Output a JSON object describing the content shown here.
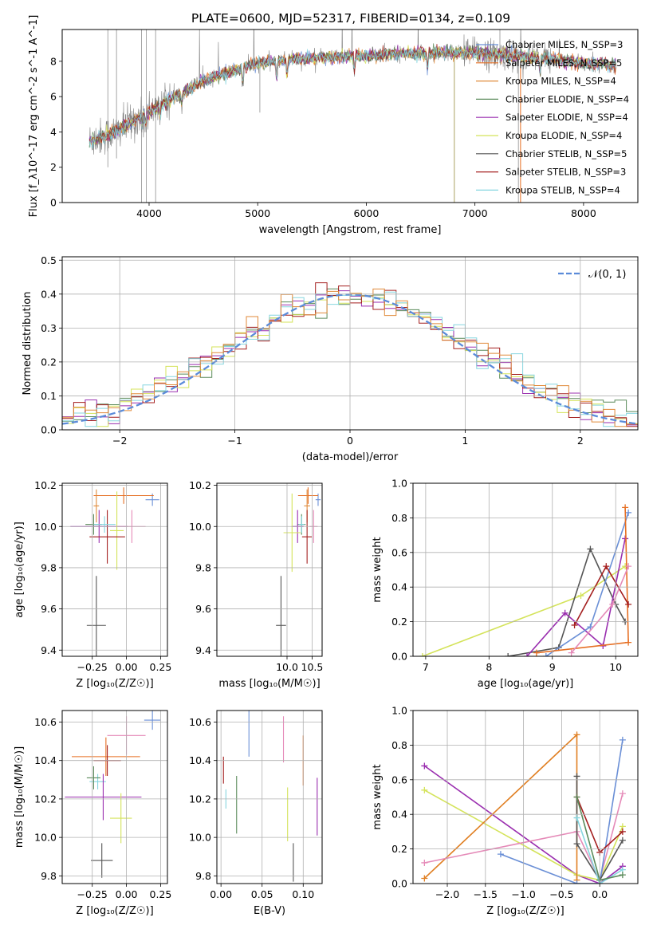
{
  "colors": {
    "ChMI": "#6a8fd6",
    "SaMI": "#e66f23",
    "KrMI": "#e08a3a",
    "ChEL": "#5a8a5a",
    "SaEL": "#9a2eaf",
    "KrEL": "#d4e35a",
    "ChST": "#555555",
    "SaST": "#a41f1f",
    "KrST": "#86d6df",
    "pink": "#e58ab8",
    "orange": "#e07f22",
    "norm": "#5b8bd9"
  },
  "chart_data": [
    {
      "type": "line",
      "title": "PLATE=0600, MJD=52317, FIBERID=0134, z=0.109",
      "xlabel": "wavelength [Angstrom, rest frame]",
      "ylabel": "Flux [f_λ10^-17 erg cm^-2 s^-1 A^-1]",
      "xlim": [
        3200,
        8500
      ],
      "ylim": [
        0,
        9.8
      ],
      "xticks": [
        "4000",
        "5000",
        "6000",
        "7000",
        "8000"
      ],
      "yticks": [
        "0",
        "2",
        "4",
        "6",
        "8"
      ],
      "legend_position": "right",
      "legend": [
        {
          "name": "Chabrier MILES, N_SSP=3",
          "color": "ChMI"
        },
        {
          "name": "Salpeter MILES, N_SSP=5",
          "color": "SaMI"
        },
        {
          "name": "Kroupa MILES, N_SSP=4",
          "color": "KrMI"
        },
        {
          "name": "Chabrier ELODIE, N_SSP=4",
          "color": "ChEL"
        },
        {
          "name": "Salpeter ELODIE, N_SSP=4",
          "color": "SaEL"
        },
        {
          "name": "Kroupa ELODIE, N_SSP=4",
          "color": "KrEL"
        },
        {
          "name": "Chabrier STELIB, N_SSP=5",
          "color": "ChST"
        },
        {
          "name": "Salpeter STELIB, N_SSP=3",
          "color": "SaST"
        },
        {
          "name": "Kroupa STELIB, N_SSP=4",
          "color": "KrST"
        }
      ],
      "continuum": [
        [
          3450,
          3.5
        ],
        [
          3700,
          4.0
        ],
        [
          3900,
          4.8
        ],
        [
          4100,
          5.5
        ],
        [
          4300,
          6.2
        ],
        [
          4500,
          6.9
        ],
        [
          4800,
          7.5
        ],
        [
          5000,
          7.9
        ],
        [
          5300,
          8.1
        ],
        [
          5600,
          8.2
        ],
        [
          6000,
          8.3
        ],
        [
          6400,
          8.45
        ],
        [
          6800,
          8.5
        ],
        [
          7200,
          8.4
        ],
        [
          7600,
          8.2
        ],
        [
          8000,
          7.9
        ],
        [
          8300,
          7.8
        ]
      ]
    },
    {
      "type": "histogram",
      "xlabel": "(data-model)/error",
      "ylabel": "Normed distribution",
      "xlim": [
        -2.5,
        2.5
      ],
      "ylim": [
        0,
        0.51
      ],
      "xticks": [
        "−2",
        "−1",
        "0",
        "1",
        "2"
      ],
      "yticks": [
        "0.0",
        "0.1",
        "0.2",
        "0.3",
        "0.4",
        "0.5"
      ],
      "legend": [
        {
          "name": "𝒩(0, 1)",
          "color": "norm"
        }
      ],
      "bin_edges_range": [
        -2.5,
        2.5
      ],
      "series_colors": [
        "ChEL",
        "SaEL",
        "KrEL",
        "SaST",
        "KrST",
        "KrMI"
      ]
    },
    {
      "type": "errorbar",
      "xlabel": "Z [log₁₀(Z/Z☉)]",
      "ylabel": "age  [log₁₀(age/yr)]",
      "xlim": [
        -0.47,
        0.3
      ],
      "ylim": [
        9.37,
        10.21
      ],
      "xticks": [
        "−0.25",
        "0.00",
        "0.25"
      ],
      "yticks": [
        "9.4",
        "9.6",
        "9.8",
        "10.0",
        "10.2"
      ],
      "points": [
        {
          "c": "ChMI",
          "x": 0.19,
          "dx": 0.05,
          "y": 10.13,
          "dy": 0.03
        },
        {
          "c": "SaMI",
          "x": -0.02,
          "dx": 0.22,
          "y": 10.15,
          "dy": 0.04
        },
        {
          "c": "KrMI",
          "x": -0.22,
          "dx": 0.02,
          "y": 10.1,
          "dy": 0.08
        },
        {
          "c": "ChEL",
          "x": -0.24,
          "dx": 0.06,
          "y": 10.01,
          "dy": 0.05
        },
        {
          "c": "SaEL",
          "x": -0.2,
          "dx": 0.21,
          "y": 10.0,
          "dy": 0.08
        },
        {
          "c": "KrEL",
          "x": -0.07,
          "dx": 0.05,
          "y": 9.98,
          "dy": 0.19
        },
        {
          "c": "ChST",
          "x": -0.22,
          "dx": 0.07,
          "y": 9.52,
          "dy": 0.24
        },
        {
          "c": "SaST",
          "x": -0.14,
          "dx": 0.13,
          "y": 9.95,
          "dy": 0.13
        },
        {
          "c": "KrST",
          "x": -0.16,
          "dx": 0.08,
          "y": 10.01,
          "dy": 0.04
        },
        {
          "c": "pink",
          "x": 0.04,
          "dx": 0.1,
          "y": 10.0,
          "dy": 0.08
        }
      ]
    },
    {
      "type": "errorbar",
      "xlabel": "mass [log₁₀(M/M☉)]",
      "ylabel": "",
      "xlim": [
        8.6,
        10.7
      ],
      "ylim": [
        9.37,
        10.21
      ],
      "xticks": [
        "10.0",
        "10.5"
      ],
      "yticks": [
        "9.4",
        "9.6",
        "9.8",
        "10.0",
        "10.2"
      ],
      "points": [
        {
          "c": "ChMI",
          "x": 10.62,
          "dx": 0.05,
          "y": 10.13,
          "dy": 0.03
        },
        {
          "c": "SaMI",
          "x": 10.42,
          "dx": 0.2,
          "y": 10.15,
          "dy": 0.04
        },
        {
          "c": "KrMI",
          "x": 10.4,
          "dx": 0.06,
          "y": 10.1,
          "dy": 0.08
        },
        {
          "c": "ChEL",
          "x": 10.29,
          "dx": 0.08,
          "y": 10.01,
          "dy": 0.05
        },
        {
          "c": "SaEL",
          "x": 10.21,
          "dx": 0.12,
          "y": 10.0,
          "dy": 0.08
        },
        {
          "c": "KrEL",
          "x": 10.1,
          "dx": 0.17,
          "y": 9.97,
          "dy": 0.19
        },
        {
          "c": "ChST",
          "x": 9.88,
          "dx": 0.1,
          "y": 9.52,
          "dy": 0.24
        },
        {
          "c": "SaST",
          "x": 10.4,
          "dx": 0.1,
          "y": 9.95,
          "dy": 0.13
        },
        {
          "c": "KrST",
          "x": 10.29,
          "dx": 0.06,
          "y": 10.01,
          "dy": 0.04
        },
        {
          "c": "pink",
          "x": 10.53,
          "dx": 0.08,
          "y": 10.0,
          "dy": 0.08
        }
      ]
    },
    {
      "type": "line",
      "xlabel": "age  [log₁₀(age/yr)]",
      "ylabel": "mass weight",
      "xlim": [
        6.8,
        10.35
      ],
      "ylim": [
        0,
        1.0
      ],
      "xticks": [
        "7",
        "8",
        "9",
        "10"
      ],
      "yticks": [
        "0.0",
        "0.2",
        "0.4",
        "0.6",
        "0.8",
        "1.0"
      ],
      "series": [
        {
          "c": "KrEL",
          "x": [
            6.95,
            9.45,
            10.15
          ],
          "y": [
            0.0,
            0.35,
            0.52
          ]
        },
        {
          "c": "ChST",
          "x": [
            8.3,
            9.1,
            9.6,
            10.0,
            10.15
          ],
          "y": [
            0.0,
            0.05,
            0.62,
            0.3,
            0.2
          ]
        },
        {
          "c": "SaEL",
          "x": [
            8.6,
            9.2,
            9.8,
            10.15
          ],
          "y": [
            0.0,
            0.25,
            0.06,
            0.68
          ]
        },
        {
          "c": "ChMI",
          "x": [
            8.9,
            9.6,
            10.2
          ],
          "y": [
            0.0,
            0.17,
            0.83
          ]
        },
        {
          "c": "SaMI",
          "x": [
            8.75,
            10.2,
            10.15
          ],
          "y": [
            0.02,
            0.08,
            0.86
          ]
        },
        {
          "c": "SaST",
          "x": [
            9.35,
            9.85,
            10.2
          ],
          "y": [
            0.18,
            0.52,
            0.3
          ]
        },
        {
          "c": "pink",
          "x": [
            9.3,
            9.95,
            10.2
          ],
          "y": [
            0.02,
            0.3,
            0.52
          ]
        }
      ]
    },
    {
      "type": "errorbar",
      "xlabel": "Z [log₁₀(Z/Z☉)]",
      "ylabel": "mass [log₁₀(M/M☉)]",
      "xlim": [
        -0.47,
        0.3
      ],
      "ylim": [
        9.76,
        10.66
      ],
      "xticks": [
        "−0.25",
        "0.00",
        "0.25"
      ],
      "yticks": [
        "9.8",
        "10.0",
        "10.2",
        "10.4",
        "10.6"
      ],
      "points": [
        {
          "c": "ChMI",
          "x": 0.19,
          "dx": 0.06,
          "y": 10.61,
          "dy": 0.05
        },
        {
          "c": "pink",
          "x": 0.0,
          "dx": 0.14,
          "y": 10.53,
          "dy": 0.1
        },
        {
          "c": "SaMI",
          "x": -0.15,
          "dx": 0.25,
          "y": 10.42,
          "dy": 0.1
        },
        {
          "c": "SaST",
          "x": -0.14,
          "dx": 0.1,
          "y": 10.4,
          "dy": 0.08
        },
        {
          "c": "KrST",
          "x": -0.21,
          "dx": 0.06,
          "y": 10.29,
          "dy": 0.04
        },
        {
          "c": "ChEL",
          "x": -0.24,
          "dx": 0.05,
          "y": 10.31,
          "dy": 0.06
        },
        {
          "c": "SaEL",
          "x": -0.17,
          "dx": 0.28,
          "y": 10.21,
          "dy": 0.12
        },
        {
          "c": "KrEL",
          "x": -0.04,
          "dx": 0.08,
          "y": 10.1,
          "dy": 0.13
        },
        {
          "c": "ChST",
          "x": -0.18,
          "dx": 0.08,
          "y": 9.88,
          "dy": 0.09
        }
      ]
    },
    {
      "type": "errorbar",
      "xlabel": "E(B-V)",
      "ylabel": "",
      "xlim": [
        -0.005,
        0.123
      ],
      "ylim": [
        9.76,
        10.66
      ],
      "xticks": [
        "0.00",
        "0.05",
        "0.10"
      ],
      "yticks": [
        "9.8",
        "10.0",
        "10.2",
        "10.4",
        "10.6"
      ],
      "points": [
        {
          "c": "SaST",
          "x": 0.003,
          "y": 10.35,
          "dy": 0.07
        },
        {
          "c": "KrST",
          "x": 0.006,
          "y": 10.2,
          "dy": 0.05
        },
        {
          "c": "ChEL",
          "x": 0.019,
          "y": 10.17,
          "dy": 0.15
        },
        {
          "c": "ChMI",
          "x": 0.034,
          "y": 10.54,
          "dy": 0.12
        },
        {
          "c": "pink",
          "x": 0.076,
          "y": 10.51,
          "dy": 0.12
        },
        {
          "c": "KrEL",
          "x": 0.081,
          "y": 10.12,
          "dy": 0.14
        },
        {
          "c": "ChST",
          "x": 0.088,
          "y": 9.87,
          "dy": 0.1
        },
        {
          "c": "SaMI",
          "x": 0.1,
          "y": 10.4,
          "dy": 0.13
        },
        {
          "c": "SaEL",
          "x": 0.117,
          "y": 10.16,
          "dy": 0.15
        }
      ]
    },
    {
      "type": "line",
      "xlabel": "Z [log₁₀(Z/Z☉)]",
      "ylabel": "mass weight",
      "xlim": [
        -2.45,
        0.5
      ],
      "ylim": [
        0,
        1.0
      ],
      "xticks": [
        "−2.0",
        "−1.5",
        "−1.0",
        "−0.5",
        "0.0"
      ],
      "yticks": [
        "0.0",
        "0.2",
        "0.4",
        "0.6",
        "0.8",
        "1.0"
      ],
      "series": [
        {
          "c": "SaEL",
          "x": [
            -2.3,
            -0.3,
            0.0,
            0.3
          ],
          "y": [
            0.68,
            0.05,
            0.0,
            0.1
          ]
        },
        {
          "c": "KrEL",
          "x": [
            -2.3,
            -0.3,
            0.0,
            0.3
          ],
          "y": [
            0.54,
            0.05,
            0.02,
            0.33
          ]
        },
        {
          "c": "orange",
          "x": [
            -2.3,
            -0.3,
            -0.3
          ],
          "y": [
            0.03,
            0.86,
            0.02
          ]
        },
        {
          "c": "pink",
          "x": [
            -2.3,
            -0.3,
            0.0,
            0.3
          ],
          "y": [
            0.12,
            0.3,
            0.02,
            0.52
          ]
        },
        {
          "c": "ChMI",
          "x": [
            -1.3,
            -0.3,
            0.0,
            0.3
          ],
          "y": [
            0.17,
            0.0,
            0.0,
            0.83
          ]
        },
        {
          "c": "ChST",
          "x": [
            -0.3,
            -0.3,
            0.0,
            0.3
          ],
          "y": [
            0.62,
            0.23,
            0.02,
            0.25
          ]
        },
        {
          "c": "SaST",
          "x": [
            -0.3,
            0.0,
            0.3
          ],
          "y": [
            0.5,
            0.18,
            0.3
          ]
        },
        {
          "c": "KrST",
          "x": [
            -0.3,
            0.0,
            0.3
          ],
          "y": [
            0.38,
            0.0,
            0.08
          ]
        },
        {
          "c": "ChEL",
          "x": [
            -0.3,
            0.0,
            0.3
          ],
          "y": [
            0.5,
            0.02,
            0.05
          ]
        }
      ]
    }
  ]
}
